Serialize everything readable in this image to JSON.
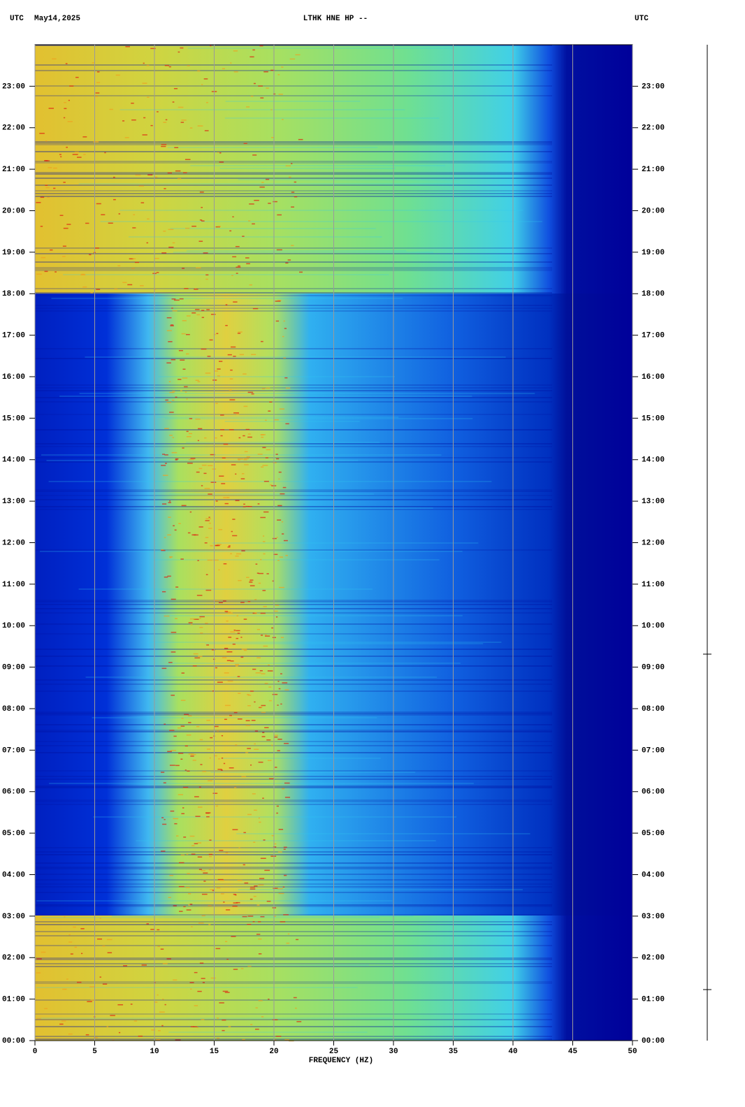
{
  "chart_data": {
    "type": "spectrogram",
    "title": "LTHK HNE HP --",
    "time_label": "UTC",
    "date": "May14,2025",
    "xlabel": "FREQUENCY (HZ)",
    "xlim": [
      0,
      50
    ],
    "xticks": [
      0,
      5,
      10,
      15,
      20,
      25,
      30,
      35,
      40,
      45,
      50
    ],
    "ylim": [
      0,
      24
    ],
    "yticks": [
      {
        "value": 0,
        "label": "00:00"
      },
      {
        "value": 1,
        "label": "01:00"
      },
      {
        "value": 2,
        "label": "02:00"
      },
      {
        "value": 3,
        "label": "03:00"
      },
      {
        "value": 4,
        "label": "04:00"
      },
      {
        "value": 5,
        "label": "05:00"
      },
      {
        "value": 6,
        "label": "06:00"
      },
      {
        "value": 7,
        "label": "07:00"
      },
      {
        "value": 8,
        "label": "08:00"
      },
      {
        "value": 9,
        "label": "09:00"
      },
      {
        "value": 10,
        "label": "10:00"
      },
      {
        "value": 11,
        "label": "11:00"
      },
      {
        "value": 12,
        "label": "12:00"
      },
      {
        "value": 13,
        "label": "13:00"
      },
      {
        "value": 14,
        "label": "14:00"
      },
      {
        "value": 15,
        "label": "15:00"
      },
      {
        "value": 16,
        "label": "16:00"
      },
      {
        "value": 17,
        "label": "17:00"
      },
      {
        "value": 18,
        "label": "18:00"
      },
      {
        "value": 19,
        "label": "19:00"
      },
      {
        "value": 20,
        "label": "20:00"
      },
      {
        "value": 21,
        "label": "21:00"
      },
      {
        "value": 22,
        "label": "22:00"
      },
      {
        "value": 23,
        "label": "23:00"
      }
    ],
    "grid": true,
    "grid_color": "#9a9a9a"
  }
}
